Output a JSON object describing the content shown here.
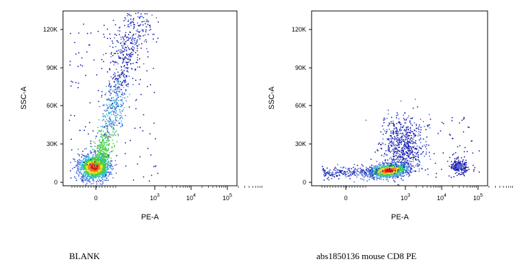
{
  "chart_data": [
    {
      "type": "scatter",
      "title": "",
      "caption": "BLANK",
      "xlabel": "PE-A",
      "ylabel": "SSC-A",
      "xscale": "biexponential",
      "x_tick_labels": [
        {
          "base": "0",
          "exp": ""
        },
        {
          "base": "10",
          "exp": "3"
        },
        {
          "base": "10",
          "exp": "4"
        },
        {
          "base": "10",
          "exp": "5"
        }
      ],
      "y_tick_labels": [
        "0",
        "30K",
        "60K",
        "90K",
        "120K"
      ],
      "ylim": [
        0,
        132000
      ],
      "density_colors": [
        "#1a1aa8",
        "#4a6ad8",
        "#33b8d8",
        "#40cf40",
        "#e8e030",
        "#ff7020",
        "#e01010"
      ],
      "clusters": [
        {
          "x": 0,
          "y": 15000,
          "spread_x": 60,
          "spread_y": 7000,
          "peak": "red"
        },
        {
          "x": 300,
          "y": 70000,
          "spread_x": 200,
          "spread_y": 40000,
          "peak": "blue"
        }
      ]
    },
    {
      "type": "scatter",
      "title": "",
      "caption": "abs1850136 mouse CD8 PE",
      "xlabel": "PE-A",
      "ylabel": "SSC-A",
      "xscale": "biexponential",
      "x_tick_labels": [
        {
          "base": "0",
          "exp": ""
        },
        {
          "base": "10",
          "exp": "3"
        },
        {
          "base": "10",
          "exp": "4"
        },
        {
          "base": "10",
          "exp": "5"
        }
      ],
      "y_tick_labels": [
        "0",
        "30K",
        "60K",
        "90K",
        "120K"
      ],
      "ylim": [
        0,
        132000
      ],
      "density_colors": [
        "#1a1aa8",
        "#4a6ad8",
        "#33b8d8",
        "#40cf40",
        "#e8e030",
        "#ff7020",
        "#e01010"
      ],
      "clusters": [
        {
          "x": 500,
          "y": 10000,
          "spread_x": 400,
          "spread_y": 5000,
          "peak": "red"
        },
        {
          "x": 1500,
          "y": 35000,
          "spread_x": 800,
          "spread_y": 12000,
          "peak": "blue"
        },
        {
          "x": 45000,
          "y": 14000,
          "spread_x": 8000,
          "spread_y": 4000,
          "peak": "blue"
        }
      ]
    }
  ]
}
